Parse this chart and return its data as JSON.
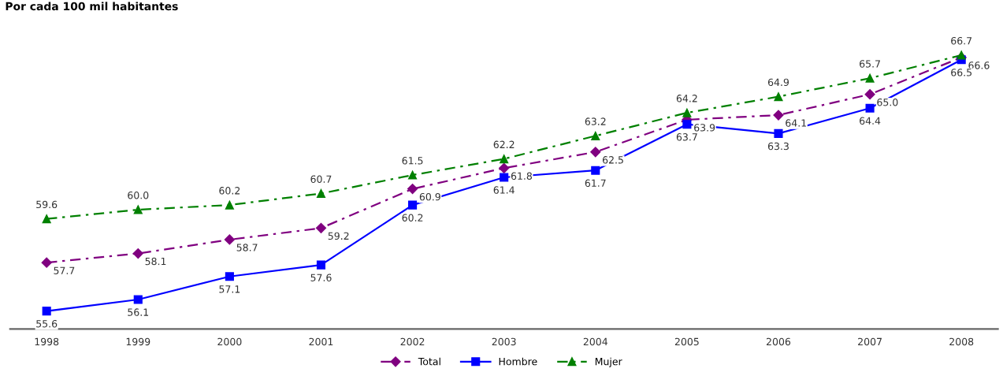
{
  "chart_data": {
    "type": "line",
    "title": "Por cada 100 mil habitantes",
    "categories": [
      "1998",
      "1999",
      "2000",
      "2001",
      "2002",
      "2003",
      "2004",
      "2005",
      "2006",
      "2007",
      "2008"
    ],
    "series": [
      {
        "name": "Total",
        "color": "#800080",
        "marker": "diamond",
        "line_style": "dashed",
        "values": [
          57.7,
          58.1,
          58.7,
          59.2,
          60.9,
          61.8,
          62.5,
          63.9,
          64.1,
          65.0,
          66.6
        ],
        "value_labels": [
          "57.7",
          "58.1",
          "58.7",
          "59.2",
          "60.9",
          "61.8",
          "62.5",
          "63.9",
          "64.1",
          "65.0",
          "66.6"
        ]
      },
      {
        "name": "Hombre",
        "color": "#0000ff",
        "marker": "square",
        "line_style": "solid",
        "values": [
          55.6,
          56.1,
          57.1,
          57.6,
          60.2,
          61.4,
          61.7,
          63.7,
          63.3,
          64.4,
          66.5
        ],
        "value_labels": [
          "55.6",
          "56.1",
          "57.1",
          "57.6",
          "60.2",
          "61.4",
          "61.7",
          "63.7",
          "63.3",
          "64.4",
          "66.5"
        ]
      },
      {
        "name": "Mujer",
        "color": "#008000",
        "marker": "triangle",
        "line_style": "dashed",
        "values": [
          59.6,
          60.0,
          60.2,
          60.7,
          61.5,
          62.2,
          63.2,
          64.2,
          64.9,
          65.7,
          66.7
        ],
        "value_labels": [
          "59.6",
          "60.0",
          "60.2",
          "60.7",
          "61.5",
          "62.2",
          "63.2",
          "64.2",
          "64.9",
          "65.7",
          "66.7"
        ]
      }
    ],
    "legend": "bottom",
    "grid": false
  }
}
